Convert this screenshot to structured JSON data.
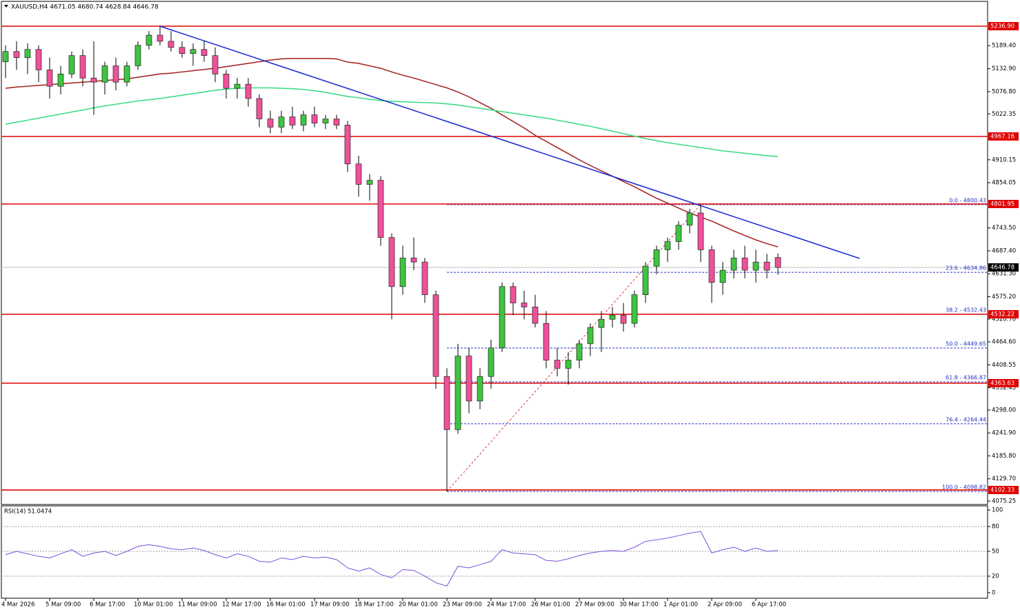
{
  "chart_data": {
    "type": "candlestick",
    "title": "XAUUSD,H4  4671.05 4680.74 4628.84 4646.78",
    "categories": [
      "4 Mar 2026",
      null,
      null,
      null,
      "5 Mar 09:00",
      null,
      null,
      null,
      "6 Mar 17:00",
      null,
      null,
      null,
      "10 Mar 01:00",
      null,
      null,
      null,
      "11 Mar 09:00",
      null,
      null,
      null,
      "12 Mar 17:00",
      null,
      null,
      null,
      "16 Mar 01:00",
      null,
      null,
      null,
      "17 Mar 09:00",
      null,
      null,
      null,
      "18 Mar 17:00",
      null,
      null,
      null,
      "20 Mar 01:00",
      null,
      null,
      null,
      "23 Mar 09:00",
      null,
      null,
      null,
      "24 Mar 17:00",
      null,
      null,
      null,
      "26 Mar 01:00",
      null,
      null,
      null,
      "27 Mar 09:00",
      null,
      null,
      null,
      "30 Mar 17:00",
      null,
      null,
      null,
      "1 Apr 01:00",
      null,
      null,
      null,
      "2 Apr 09:00",
      null,
      null,
      null,
      "6 Apr 17:00",
      null,
      null
    ],
    "open": [
      5150,
      5175,
      5160,
      5180,
      5130,
      5090,
      5120,
      5165,
      5110,
      5100,
      5140,
      5100,
      5140,
      5190,
      5215,
      5200,
      5185,
      5170,
      5180,
      5165,
      5120,
      5085,
      5095,
      5060,
      5010,
      4990,
      5015,
      4995,
      5020,
      5000,
      5010,
      4995,
      4900,
      4850,
      4860,
      4720,
      4600,
      4670,
      4660,
      4580,
      4380,
      4250,
      4430,
      4320,
      4380,
      4450,
      4600,
      4560,
      4550,
      4510,
      4420,
      4400,
      4420,
      4460,
      4500,
      4520,
      4530,
      4510,
      4580,
      4650,
      4690,
      4710,
      4750,
      4780,
      4690,
      4610,
      4640,
      4670,
      4640,
      4660,
      4671.05
    ],
    "high": [
      5190,
      5200,
      5195,
      5190,
      5160,
      5140,
      5175,
      5180,
      5200,
      5150,
      5160,
      5150,
      5200,
      5225,
      5237,
      5225,
      5200,
      5195,
      5200,
      5185,
      5130,
      5110,
      5110,
      5070,
      5030,
      5030,
      5040,
      5030,
      5040,
      5020,
      5020,
      5005,
      4920,
      4875,
      4870,
      4730,
      4700,
      4720,
      4670,
      4590,
      4400,
      4460,
      4450,
      4400,
      4470,
      4610,
      4610,
      4590,
      4580,
      4540,
      4450,
      4440,
      4470,
      4510,
      4540,
      4550,
      4560,
      4590,
      4660,
      4700,
      4720,
      4760,
      4790,
      4800.43,
      4700,
      4660,
      4690,
      4700,
      4690,
      4680,
      4680.74
    ],
    "low": [
      5110,
      5130,
      5120,
      5100,
      5060,
      5070,
      5110,
      5090,
      5020,
      5070,
      5080,
      5090,
      5130,
      5180,
      5190,
      5175,
      5160,
      5140,
      5150,
      5100,
      5060,
      5060,
      5040,
      4990,
      4975,
      4975,
      4985,
      4980,
      4990,
      4985,
      4985,
      4880,
      4820,
      4810,
      4700,
      4520,
      4580,
      4640,
      4560,
      4350,
      4098.82,
      4240,
      4290,
      4300,
      4350,
      4440,
      4530,
      4520,
      4500,
      4400,
      4380,
      4360,
      4400,
      4430,
      4440,
      4500,
      4490,
      4500,
      4560,
      4630,
      4660,
      4690,
      4730,
      4660,
      4560,
      4580,
      4620,
      4620,
      4610,
      4620,
      4628.84
    ],
    "close": [
      5175,
      5160,
      5180,
      5130,
      5090,
      5120,
      5165,
      5110,
      5100,
      5140,
      5100,
      5140,
      5190,
      5215,
      5200,
      5185,
      5170,
      5180,
      5165,
      5120,
      5085,
      5095,
      5060,
      5010,
      4990,
      5015,
      4995,
      5020,
      5000,
      5010,
      4995,
      4900,
      4850,
      4860,
      4720,
      4600,
      4670,
      4660,
      4580,
      4380,
      4250,
      4430,
      4320,
      4380,
      4450,
      4600,
      4560,
      4550,
      4510,
      4420,
      4400,
      4420,
      4460,
      4500,
      4520,
      4530,
      4510,
      4580,
      4650,
      4690,
      4710,
      4750,
      4780,
      4690,
      4610,
      4640,
      4670,
      4640,
      4660,
      4640,
      4646.78
    ],
    "up_color": "#3fc43f",
    "down_color": "#f0509a",
    "lines": [
      {
        "color": "#a52a2a",
        "values": [
          5085,
          5088,
          5090,
          5092,
          5094,
          5096,
          5098,
          5100,
          5102,
          5104,
          5106,
          5108,
          5112,
          5116,
          5120,
          5122,
          5125,
          5128,
          5131,
          5134,
          5138,
          5142,
          5146,
          5150,
          5154,
          5157,
          5158,
          5158,
          5158,
          5158,
          5157,
          5149,
          5146,
          5140,
          5134,
          5125,
          5117,
          5110,
          5102,
          5094,
          5086,
          5076,
          5064,
          5050,
          5036,
          5020,
          5004,
          4988,
          4970,
          4955,
          4940,
          4925,
          4910,
          4896,
          4883,
          4870,
          4857,
          4844,
          4830,
          4816,
          4804,
          4792,
          4780,
          4770,
          4760,
          4748,
          4736,
          4725,
          4714,
          4705,
          4697
        ]
      },
      {
        "color": "#3ddc84",
        "values": [
          4997,
          5002,
          5007,
          5012,
          5017,
          5022,
          5027,
          5032,
          5037,
          5042,
          5046,
          5050,
          5054,
          5057,
          5060,
          5064,
          5068,
          5072,
          5076,
          5080,
          5083,
          5085,
          5086,
          5086,
          5086,
          5085,
          5084,
          5082,
          5079,
          5075,
          5070,
          5065,
          5062,
          5058,
          5055,
          5053,
          5052,
          5051,
          5050,
          5049,
          5047,
          5044,
          5040,
          5036,
          5032,
          5028,
          5024,
          5020,
          5016,
          5012,
          5007,
          5002,
          4997,
          4992,
          4986,
          4980,
          4974,
          4968,
          4962,
          4957,
          4952,
          4948,
          4944,
          4940,
          4936,
          4932,
          4929,
          4926,
          4923,
          4920,
          4918
        ]
      }
    ],
    "trendline": {
      "color": "#1f2fd0",
      "x": [
        14,
        77.4
      ],
      "values": [
        5236.9,
        4668.8
      ]
    },
    "fib_line": {
      "color": "#e03030",
      "x": [
        40,
        63
      ],
      "values": [
        4098.82,
        4800.43
      ]
    },
    "level_color": "#e00000",
    "levels": [
      {
        "value": 5236.9,
        "label": "5236.90"
      },
      {
        "value": 4967.16,
        "label": "4967.16"
      },
      {
        "value": 4801.95,
        "label": "4801.95"
      },
      {
        "value": 4532.22,
        "label": "4532.22"
      },
      {
        "value": 4363.63,
        "label": "4363.63"
      },
      {
        "value": 4102.33,
        "label": "4102.33"
      }
    ],
    "fib_color": "#2030c8",
    "fib_levels": [
      {
        "value": 4800.43,
        "label": "0.0 - 4800.43"
      },
      {
        "value": 4634.86,
        "label": "23.6 - 4634.86"
      },
      {
        "value": 4532.43,
        "label": "38.2 - 4532.43"
      },
      {
        "value": 4449.65,
        "label": "50.0 - 4449.65"
      },
      {
        "value": 4366.87,
        "label": "61.8 - 4366.87"
      },
      {
        "value": 4264.44,
        "label": "76.4 - 4264.44"
      },
      {
        "value": 4098.82,
        "label": "100.0 - 4098.82"
      }
    ],
    "price_line": {
      "value": 4646.78,
      "label": "4646.78",
      "color": "#c0c0c0"
    },
    "ylim": [
      4066.9,
      5297.6
    ],
    "yticks": [
      {
        "value": 5189.4,
        "label": "5189.40"
      },
      {
        "value": 5132.9,
        "label": "5132.90"
      },
      {
        "value": 5076.8,
        "label": "5076.80"
      },
      {
        "value": 5022.35,
        "label": "5022.35"
      },
      {
        "value": 4910.15,
        "label": "4910.15"
      },
      {
        "value": 4854.05,
        "label": "4854.05"
      },
      {
        "value": 4743.5,
        "label": "4743.50"
      },
      {
        "value": 4687.4,
        "label": "4687.40"
      },
      {
        "value": 4631.3,
        "label": "4631.30"
      },
      {
        "value": 4575.2,
        "label": "4575.20"
      },
      {
        "value": 4520.7,
        "label": "4520.70"
      },
      {
        "value": 4464.6,
        "label": "4464.60"
      },
      {
        "value": 4408.55,
        "label": "4408.55"
      },
      {
        "value": 4352.45,
        "label": "4352.45"
      },
      {
        "value": 4298,
        "label": "4298.00"
      },
      {
        "value": 4241.9,
        "label": "4241.90"
      },
      {
        "value": 4185.8,
        "label": "4185.80"
      },
      {
        "value": 4129.7,
        "label": "4129.70"
      },
      {
        "value": 4075.25,
        "label": "4075.25"
      }
    ],
    "rsi": {
      "title": "RSI(14) 51.0474",
      "color": "#7a4fd8",
      "values": [
        46,
        50,
        47,
        44,
        42,
        47,
        52,
        44,
        48,
        50,
        45,
        50,
        56,
        58,
        56,
        53,
        52,
        54,
        51,
        46,
        42,
        47,
        44,
        38,
        37,
        42,
        40,
        44,
        42,
        43,
        40,
        30,
        26,
        30,
        22,
        18,
        28,
        27,
        20,
        12,
        8,
        32,
        30,
        34,
        38,
        52,
        48,
        47,
        46,
        39,
        38,
        41,
        45,
        48,
        50,
        51,
        50,
        55,
        62,
        64,
        66,
        69,
        72,
        74,
        48,
        52,
        55,
        50,
        54,
        50,
        51.0474
      ],
      "ylim": [
        -6.7,
        105
      ],
      "yticks": [
        100,
        80,
        50,
        20,
        0
      ],
      "levels": [
        80,
        50,
        20
      ]
    }
  }
}
